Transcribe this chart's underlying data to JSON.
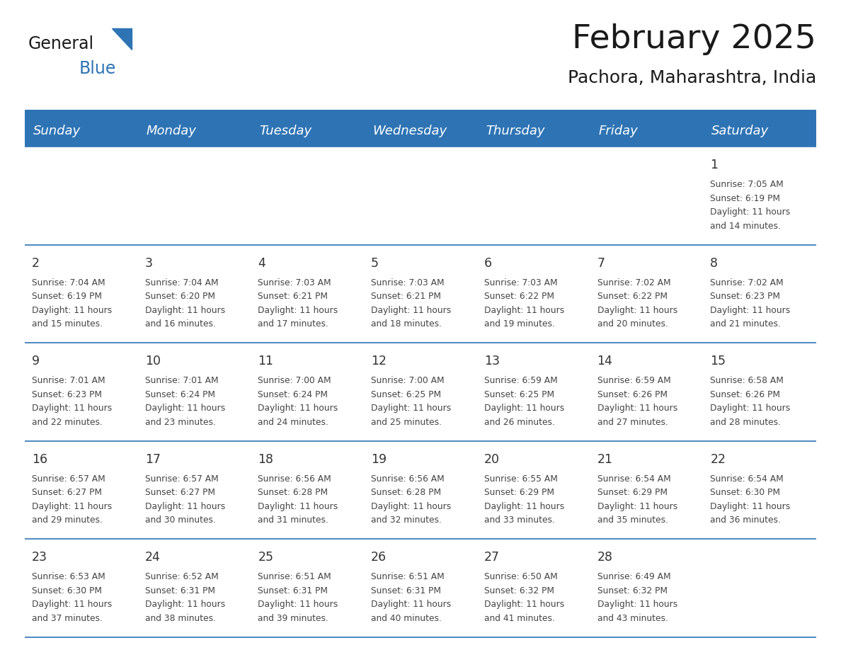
{
  "title": "February 2025",
  "subtitle": "Pachora, Maharashtra, India",
  "days_of_week": [
    "Sunday",
    "Monday",
    "Tuesday",
    "Wednesday",
    "Thursday",
    "Friday",
    "Saturday"
  ],
  "header_bg": "#2E74B5",
  "header_text": "#FFFFFF",
  "cell_bg": "#FFFFFF",
  "divider_color": "#2E74B5",
  "text_color": "#444444",
  "day_num_color": "#333333",
  "calendar_data": [
    {
      "day": 1,
      "week": 0,
      "dow": 6,
      "sunrise": "7:05 AM",
      "sunset": "6:19 PM",
      "daylight": "11 hours and 14 minutes."
    },
    {
      "day": 2,
      "week": 1,
      "dow": 0,
      "sunrise": "7:04 AM",
      "sunset": "6:19 PM",
      "daylight": "11 hours and 15 minutes."
    },
    {
      "day": 3,
      "week": 1,
      "dow": 1,
      "sunrise": "7:04 AM",
      "sunset": "6:20 PM",
      "daylight": "11 hours and 16 minutes."
    },
    {
      "day": 4,
      "week": 1,
      "dow": 2,
      "sunrise": "7:03 AM",
      "sunset": "6:21 PM",
      "daylight": "11 hours and 17 minutes."
    },
    {
      "day": 5,
      "week": 1,
      "dow": 3,
      "sunrise": "7:03 AM",
      "sunset": "6:21 PM",
      "daylight": "11 hours and 18 minutes."
    },
    {
      "day": 6,
      "week": 1,
      "dow": 4,
      "sunrise": "7:03 AM",
      "sunset": "6:22 PM",
      "daylight": "11 hours and 19 minutes."
    },
    {
      "day": 7,
      "week": 1,
      "dow": 5,
      "sunrise": "7:02 AM",
      "sunset": "6:22 PM",
      "daylight": "11 hours and 20 minutes."
    },
    {
      "day": 8,
      "week": 1,
      "dow": 6,
      "sunrise": "7:02 AM",
      "sunset": "6:23 PM",
      "daylight": "11 hours and 21 minutes."
    },
    {
      "day": 9,
      "week": 2,
      "dow": 0,
      "sunrise": "7:01 AM",
      "sunset": "6:23 PM",
      "daylight": "11 hours and 22 minutes."
    },
    {
      "day": 10,
      "week": 2,
      "dow": 1,
      "sunrise": "7:01 AM",
      "sunset": "6:24 PM",
      "daylight": "11 hours and 23 minutes."
    },
    {
      "day": 11,
      "week": 2,
      "dow": 2,
      "sunrise": "7:00 AM",
      "sunset": "6:24 PM",
      "daylight": "11 hours and 24 minutes."
    },
    {
      "day": 12,
      "week": 2,
      "dow": 3,
      "sunrise": "7:00 AM",
      "sunset": "6:25 PM",
      "daylight": "11 hours and 25 minutes."
    },
    {
      "day": 13,
      "week": 2,
      "dow": 4,
      "sunrise": "6:59 AM",
      "sunset": "6:25 PM",
      "daylight": "11 hours and 26 minutes."
    },
    {
      "day": 14,
      "week": 2,
      "dow": 5,
      "sunrise": "6:59 AM",
      "sunset": "6:26 PM",
      "daylight": "11 hours and 27 minutes."
    },
    {
      "day": 15,
      "week": 2,
      "dow": 6,
      "sunrise": "6:58 AM",
      "sunset": "6:26 PM",
      "daylight": "11 hours and 28 minutes."
    },
    {
      "day": 16,
      "week": 3,
      "dow": 0,
      "sunrise": "6:57 AM",
      "sunset": "6:27 PM",
      "daylight": "11 hours and 29 minutes."
    },
    {
      "day": 17,
      "week": 3,
      "dow": 1,
      "sunrise": "6:57 AM",
      "sunset": "6:27 PM",
      "daylight": "11 hours and 30 minutes."
    },
    {
      "day": 18,
      "week": 3,
      "dow": 2,
      "sunrise": "6:56 AM",
      "sunset": "6:28 PM",
      "daylight": "11 hours and 31 minutes."
    },
    {
      "day": 19,
      "week": 3,
      "dow": 3,
      "sunrise": "6:56 AM",
      "sunset": "6:28 PM",
      "daylight": "11 hours and 32 minutes."
    },
    {
      "day": 20,
      "week": 3,
      "dow": 4,
      "sunrise": "6:55 AM",
      "sunset": "6:29 PM",
      "daylight": "11 hours and 33 minutes."
    },
    {
      "day": 21,
      "week": 3,
      "dow": 5,
      "sunrise": "6:54 AM",
      "sunset": "6:29 PM",
      "daylight": "11 hours and 35 minutes."
    },
    {
      "day": 22,
      "week": 3,
      "dow": 6,
      "sunrise": "6:54 AM",
      "sunset": "6:30 PM",
      "daylight": "11 hours and 36 minutes."
    },
    {
      "day": 23,
      "week": 4,
      "dow": 0,
      "sunrise": "6:53 AM",
      "sunset": "6:30 PM",
      "daylight": "11 hours and 37 minutes."
    },
    {
      "day": 24,
      "week": 4,
      "dow": 1,
      "sunrise": "6:52 AM",
      "sunset": "6:31 PM",
      "daylight": "11 hours and 38 minutes."
    },
    {
      "day": 25,
      "week": 4,
      "dow": 2,
      "sunrise": "6:51 AM",
      "sunset": "6:31 PM",
      "daylight": "11 hours and 39 minutes."
    },
    {
      "day": 26,
      "week": 4,
      "dow": 3,
      "sunrise": "6:51 AM",
      "sunset": "6:31 PM",
      "daylight": "11 hours and 40 minutes."
    },
    {
      "day": 27,
      "week": 4,
      "dow": 4,
      "sunrise": "6:50 AM",
      "sunset": "6:32 PM",
      "daylight": "11 hours and 41 minutes."
    },
    {
      "day": 28,
      "week": 4,
      "dow": 5,
      "sunrise": "6:49 AM",
      "sunset": "6:32 PM",
      "daylight": "11 hours and 43 minutes."
    }
  ],
  "num_weeks": 5,
  "logo_text_general": "General",
  "logo_text_blue": "Blue",
  "logo_triangle_color": "#2E74B5"
}
